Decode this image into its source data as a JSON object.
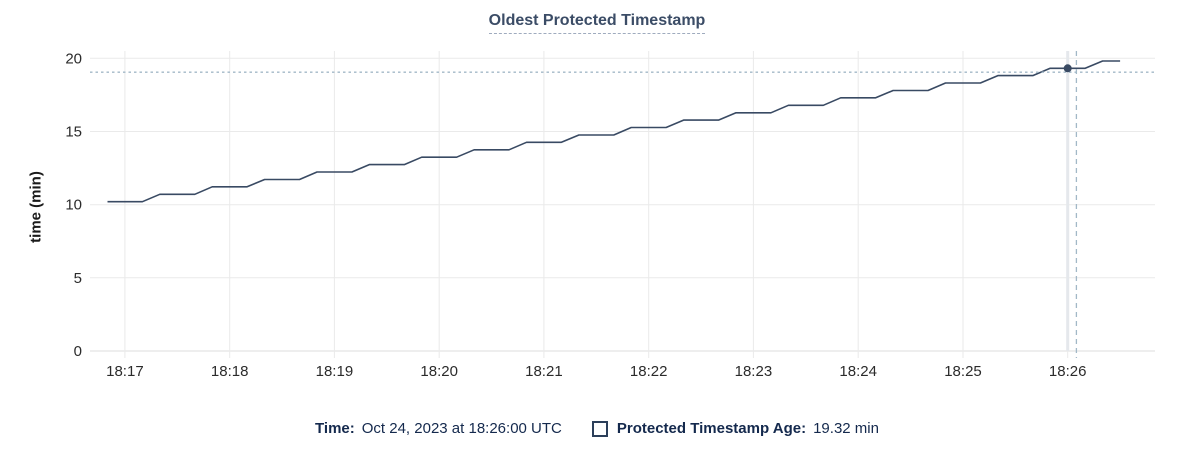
{
  "title": "Oldest Protected Timestamp",
  "colors": {
    "series": "#394a63",
    "hover_dot": "#394a63",
    "crosshair": "#a2b8c7",
    "hover_band": "#e5e8ec",
    "grid": "#eaeaea",
    "axis_line": "#dedede",
    "tick_label": "#2b2b2b",
    "title_text": "#3b4c66",
    "footer_text": "#14294d",
    "y_axis_title_text": "#1a1a1a"
  },
  "chart_data": {
    "type": "line",
    "title": "Oldest Protected Timestamp",
    "xlabel": "",
    "ylabel": "time (min)",
    "x_domain": [
      "18:16:40",
      "18:26:50"
    ],
    "ylim": [
      0,
      20.5
    ],
    "x_ticks": [
      "18:17",
      "18:18",
      "18:19",
      "18:20",
      "18:21",
      "18:22",
      "18:23",
      "18:24",
      "18:25",
      "18:26"
    ],
    "y_ticks": [
      0,
      5,
      10,
      15,
      20
    ],
    "grid": true,
    "legend_position": "bottom",
    "series": [
      {
        "name": "Protected Timestamp Age",
        "x": [
          "18:16:50",
          "18:17:00",
          "18:17:10",
          "18:17:20",
          "18:17:30",
          "18:17:40",
          "18:17:50",
          "18:18:00",
          "18:18:10",
          "18:18:20",
          "18:18:30",
          "18:18:40",
          "18:18:50",
          "18:19:00",
          "18:19:10",
          "18:19:20",
          "18:19:30",
          "18:19:40",
          "18:19:50",
          "18:20:00",
          "18:20:10",
          "18:20:20",
          "18:20:30",
          "18:20:40",
          "18:20:50",
          "18:21:00",
          "18:21:10",
          "18:21:20",
          "18:21:30",
          "18:21:40",
          "18:21:50",
          "18:22:00",
          "18:22:10",
          "18:22:20",
          "18:22:30",
          "18:22:40",
          "18:22:50",
          "18:23:00",
          "18:23:10",
          "18:23:20",
          "18:23:30",
          "18:23:40",
          "18:23:50",
          "18:24:00",
          "18:24:10",
          "18:24:20",
          "18:24:30",
          "18:24:40",
          "18:24:50",
          "18:25:00",
          "18:25:10",
          "18:25:20",
          "18:25:30",
          "18:25:40",
          "18:25:50",
          "18:26:00",
          "18:26:10",
          "18:26:20",
          "18:26:30"
        ],
        "values": [
          10.2,
          10.2,
          10.2,
          10.71,
          10.71,
          10.71,
          11.22,
          11.22,
          11.22,
          11.72,
          11.72,
          11.72,
          12.23,
          12.23,
          12.23,
          12.74,
          12.74,
          12.74,
          13.24,
          13.24,
          13.24,
          13.75,
          13.75,
          13.75,
          14.26,
          14.26,
          14.26,
          14.76,
          14.76,
          14.76,
          15.27,
          15.27,
          15.27,
          15.78,
          15.78,
          15.78,
          16.28,
          16.28,
          16.28,
          16.79,
          16.79,
          16.79,
          17.3,
          17.3,
          17.3,
          17.8,
          17.8,
          17.8,
          18.31,
          18.31,
          18.31,
          18.82,
          18.82,
          18.82,
          19.32,
          19.32,
          19.32,
          19.82,
          19.82
        ]
      }
    ],
    "hover": {
      "snap_time": "18:26:00",
      "snap_value": 19.32,
      "cursor_time": "18:26:05",
      "cursor_value": 19.05
    }
  },
  "footer": {
    "time_label": "Time:",
    "time_value": "Oct 24, 2023 at 18:26:00 UTC",
    "legend_marker": "square-outline",
    "legend_label": "Protected Timestamp Age:",
    "legend_value": "19.32 min"
  }
}
